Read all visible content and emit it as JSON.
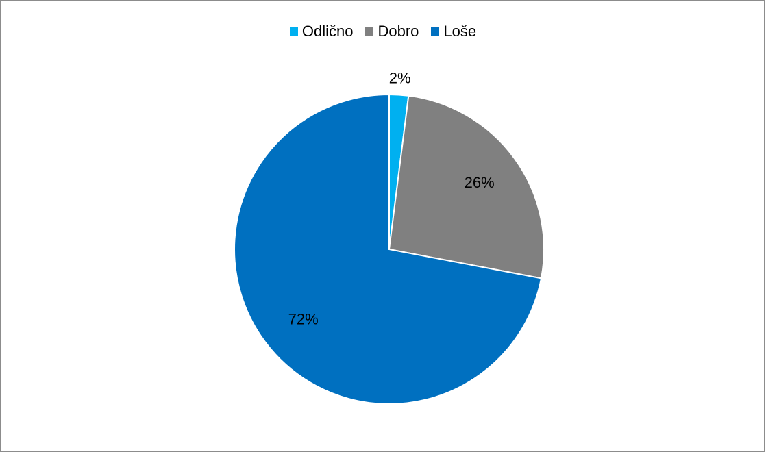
{
  "chart_data": {
    "type": "pie",
    "title": "",
    "categories": [
      "Odlično",
      "Dobro",
      "Loše"
    ],
    "values": [
      2,
      26,
      72
    ],
    "value_labels": [
      "2%",
      "26%",
      "72%"
    ],
    "colors": [
      "#00b0f0",
      "#808080",
      "#0070c0"
    ],
    "legend_position": "top",
    "start_angle": "12 o'clock, clockwise"
  }
}
